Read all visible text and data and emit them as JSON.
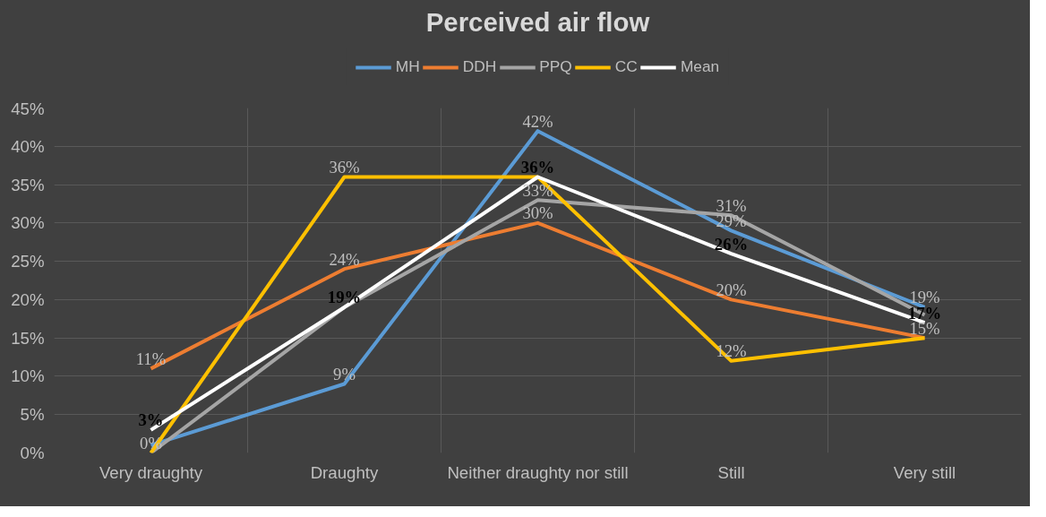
{
  "chart_data": {
    "type": "line",
    "title": "Perceived air flow",
    "categories": [
      "Very draughty",
      "Draughty",
      "Neither draughty nor still",
      "Still",
      "Very still"
    ],
    "series": [
      {
        "name": "MH",
        "color": "#5b9bd5",
        "values": [
          1,
          9,
          42,
          29,
          19
        ],
        "value_labels": [
          null,
          "9%",
          "42%",
          "29%",
          "19%"
        ]
      },
      {
        "name": "DDH",
        "color": "#ed7d31",
        "values": [
          11,
          24,
          30,
          20,
          15
        ],
        "value_labels": [
          "11%",
          "24%",
          "30%",
          "20%",
          "15%"
        ]
      },
      {
        "name": "PPQ",
        "color": "#a5a5a5",
        "values": [
          0,
          19,
          33,
          31,
          18
        ],
        "value_labels": [
          null,
          null,
          "33%",
          "31%",
          null
        ]
      },
      {
        "name": "CC",
        "color": "#ffc000",
        "values": [
          0,
          36,
          36,
          12,
          15
        ],
        "value_labels": [
          "0%",
          "36%",
          null,
          "12%",
          null
        ]
      },
      {
        "name": "Mean",
        "color": "#ffffff",
        "values": [
          3,
          19,
          36,
          26,
          17
        ],
        "value_labels": [
          "3%",
          "19%",
          "36%",
          "26%",
          "17%"
        ]
      }
    ],
    "ylim": [
      0,
      45
    ],
    "yticks": [
      {
        "value": 0,
        "label": "0%"
      },
      {
        "value": 5,
        "label": "5%"
      },
      {
        "value": 10,
        "label": "10%"
      },
      {
        "value": 15,
        "label": "15%"
      },
      {
        "value": 20,
        "label": "20%"
      },
      {
        "value": 25,
        "label": "25%"
      },
      {
        "value": 30,
        "label": "30%"
      },
      {
        "value": 35,
        "label": "35%"
      },
      {
        "value": 40,
        "label": "40%"
      },
      {
        "value": 45,
        "label": "45%"
      }
    ],
    "grid": true,
    "legend": "top",
    "marker": "none",
    "line_style": "solid"
  }
}
